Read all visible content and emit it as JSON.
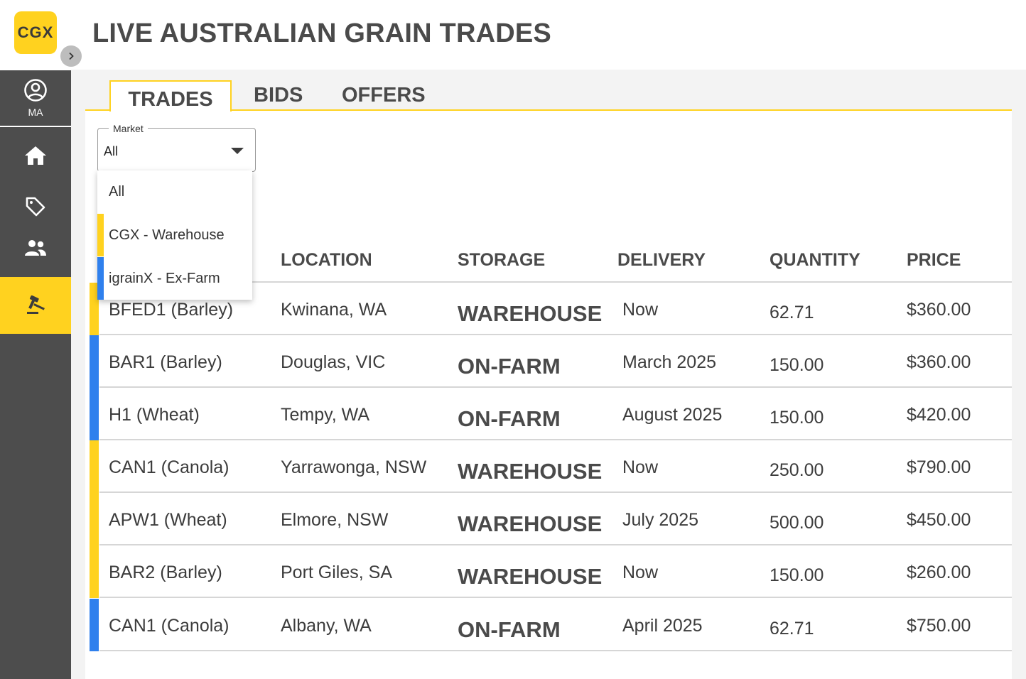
{
  "app": {
    "logo_text": "CGX",
    "title": "LIVE AUSTRALIAN GRAIN TRADES"
  },
  "sidebar": {
    "user_initials": "MA"
  },
  "tabs": [
    {
      "label": "TRADES",
      "active": true
    },
    {
      "label": "BIDS",
      "active": false
    },
    {
      "label": "OFFERS",
      "active": false
    }
  ],
  "filter": {
    "label": "Market",
    "value": "All",
    "options": [
      {
        "label": "All",
        "color": ""
      },
      {
        "label": "CGX - Warehouse",
        "color": "#ffd21f"
      },
      {
        "label": "igrainX - Ex-Farm",
        "color": "#2f80ed"
      }
    ]
  },
  "colors": {
    "warehouse": "#ffd21f",
    "on_farm": "#2f80ed",
    "accent": "#ffd21f"
  },
  "table": {
    "columns": [
      "LOCATION",
      "STORAGE",
      "DELIVERY",
      "QUANTITY",
      "PRICE"
    ],
    "rows": [
      {
        "grain": "BFED1 (Barley)",
        "location": "Kwinana, WA",
        "storage": "WAREHOUSE",
        "delivery": "Now",
        "quantity": "62.71",
        "price": "$360.00",
        "color": "#ffd21f"
      },
      {
        "grain": "BAR1 (Barley)",
        "location": "Douglas, VIC",
        "storage": "ON-FARM",
        "delivery": "March 2025",
        "quantity": "150.00",
        "price": "$360.00",
        "color": "#2f80ed"
      },
      {
        "grain": "H1 (Wheat)",
        "location": "Tempy, WA",
        "storage": "ON-FARM",
        "delivery": "August 2025",
        "quantity": "150.00",
        "price": "$420.00",
        "color": "#2f80ed"
      },
      {
        "grain": "CAN1 (Canola)",
        "location": "Yarrawonga, NSW",
        "storage": "WAREHOUSE",
        "delivery": "Now",
        "quantity": "250.00",
        "price": "$790.00",
        "color": "#ffd21f"
      },
      {
        "grain": "APW1 (Wheat)",
        "location": "Elmore, NSW",
        "storage": "WAREHOUSE",
        "delivery": "July 2025",
        "quantity": "500.00",
        "price": "$450.00",
        "color": "#ffd21f"
      },
      {
        "grain": "BAR2 (Barley)",
        "location": "Port Giles, SA",
        "storage": "WAREHOUSE",
        "delivery": "Now",
        "quantity": "150.00",
        "price": "$260.00",
        "color": "#ffd21f"
      },
      {
        "grain": "CAN1 (Canola)",
        "location": "Albany, WA",
        "storage": "ON-FARM",
        "delivery": "April 2025",
        "quantity": "62.71",
        "price": "$750.00",
        "color": "#2f80ed"
      }
    ]
  }
}
